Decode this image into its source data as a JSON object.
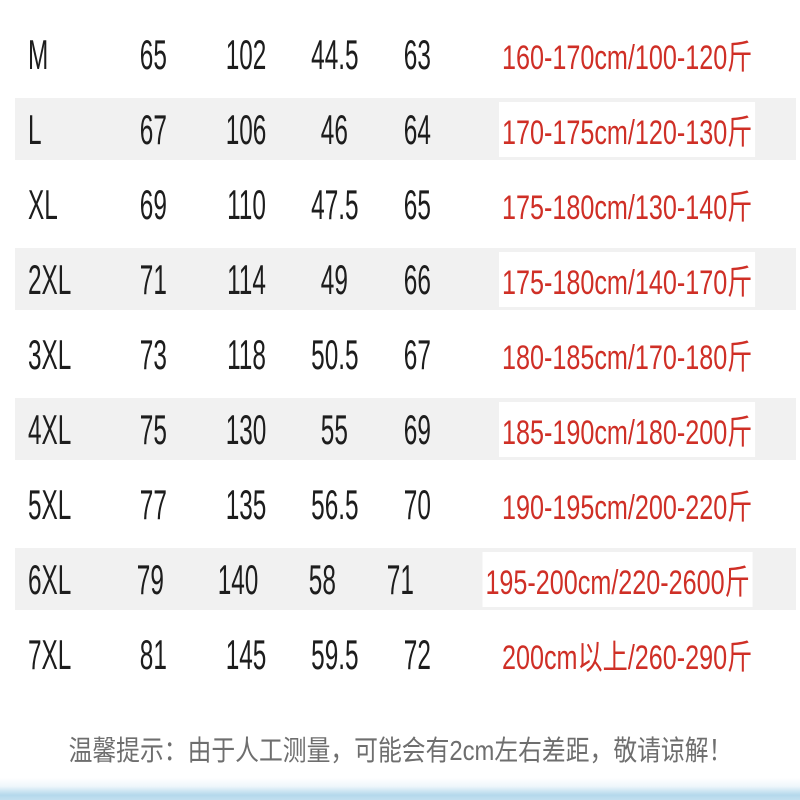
{
  "rows": [
    {
      "size": "M",
      "v1": "65",
      "v2": "102",
      "v3": "44.5",
      "v4": "63",
      "fit": "160-170cm/100-120斤"
    },
    {
      "size": "L",
      "v1": "67",
      "v2": "106",
      "v3": "46",
      "v4": "64",
      "fit": "170-175cm/120-130斤"
    },
    {
      "size": "XL",
      "v1": "69",
      "v2": "110",
      "v3": "47.5",
      "v4": "65",
      "fit": "175-180cm/130-140斤"
    },
    {
      "size": "2XL",
      "v1": "71",
      "v2": "114",
      "v3": "49",
      "v4": "66",
      "fit": "175-180cm/140-170斤"
    },
    {
      "size": "3XL",
      "v1": "73",
      "v2": "118",
      "v3": "50.5",
      "v4": "67",
      "fit": "180-185cm/170-180斤"
    },
    {
      "size": "4XL",
      "v1": "75",
      "v2": "130",
      "v3": "55",
      "v4": "69",
      "fit": "185-190cm/180-200斤"
    },
    {
      "size": "5XL",
      "v1": "77",
      "v2": "135",
      "v3": "56.5",
      "v4": "70",
      "fit": "190-195cm/200-220斤"
    },
    {
      "size": "6XL",
      "v1": "79",
      "v2": "140",
      "v3": "58",
      "v4": "71",
      "fit": "195-200cm/220-2600斤"
    },
    {
      "size": "7XL",
      "v1": "81",
      "v2": "145",
      "v3": "59.5",
      "v4": "72",
      "fit": "200cm以上/260-290斤"
    }
  ],
  "note": "温馨提示：由于人工测量，可能会有2cm左右差距，敬请谅解！",
  "colors": {
    "text_black": "#1d1d1d",
    "accent_red": "#cf2f26",
    "row_stripe_gray": "#f1f1f1",
    "note_gray": "#6e6e6e",
    "footer_blue": "#b4d8ec"
  }
}
